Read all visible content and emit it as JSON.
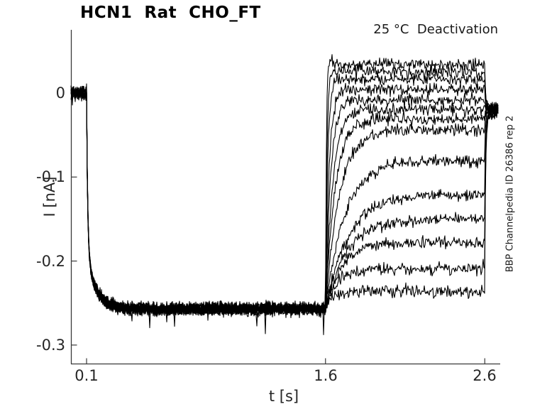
{
  "chart_data": {
    "type": "line",
    "title": "HCN1  Rat  CHO_FT",
    "annotation": "25 °C  Deactivation",
    "watermark": "BBP Channelpedia ID 26386 rep 2",
    "xlabel": "t [s]",
    "ylabel": "I [nA]",
    "xlim": [
      0.0,
      2.69
    ],
    "ylim": [
      -0.322,
      0.075
    ],
    "xticks": [
      0.1,
      1.6,
      2.6
    ],
    "yticks": [
      0,
      -0.1,
      -0.2,
      -0.3
    ],
    "grid": false,
    "legend": "none",
    "colors": {
      "trace": "#000000",
      "axis": "#3a3a3a",
      "background": "#ffffff"
    },
    "n_traces": 14,
    "protocol": {
      "baseline_nA": 0,
      "activation": {
        "t_start_s": 0.1,
        "steady_nA": -0.257,
        "tau_fast_s": 0.007,
        "tau_slow_s": 0.06,
        "frac_fast": 0.75
      },
      "deactivation": {
        "t_start_s": 1.6,
        "levels_nA": [
          0.034,
          0.025,
          0.016,
          0.004,
          -0.009,
          -0.02,
          -0.031,
          -0.044,
          -0.081,
          -0.121,
          -0.15,
          -0.178,
          -0.209,
          -0.236
        ],
        "taus_s": [
          0.006,
          0.009,
          0.014,
          0.022,
          0.032,
          0.045,
          0.06,
          0.085,
          0.12,
          0.14,
          0.13,
          0.1,
          0.07,
          0.045
        ],
        "overshoot_nA": 0.018
      },
      "tail": {
        "t_start_s": 2.6,
        "settle_nA": -0.019,
        "tau_s": 0.04,
        "t_end_s": 2.687
      },
      "noise_sd_nA": 0.0035
    }
  }
}
